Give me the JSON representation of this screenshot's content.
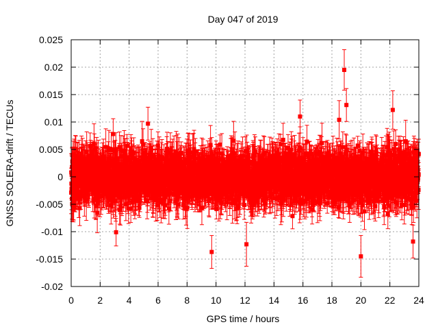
{
  "chart_data": {
    "type": "scatter",
    "title": "Day 047 of 2019",
    "xlabel": "GPS time / hours",
    "ylabel": "GNSS SOLERA-drift / TECUs",
    "xlim": [
      0,
      24
    ],
    "ylim": [
      -0.02,
      0.025
    ],
    "x_ticks": [
      0,
      2,
      4,
      6,
      8,
      10,
      12,
      14,
      16,
      18,
      20,
      22,
      24
    ],
    "x_tick_labels": [
      "0",
      "2",
      "4",
      "6",
      "8",
      "10",
      "12",
      "14",
      "16",
      "18",
      "20",
      "22",
      "24"
    ],
    "y_ticks": [
      -0.02,
      -0.015,
      -0.01,
      -0.005,
      0,
      0.005,
      0.01,
      0.015,
      0.02,
      0.025
    ],
    "y_tick_labels": [
      "-0.02",
      "-0.015",
      "-0.01",
      "-0.005",
      "0",
      "0.005",
      "0.01",
      "0.015",
      "0.02",
      "0.025"
    ],
    "grid": true,
    "series_color": "#ff0000",
    "noise": {
      "sample_interval_hours": 0.0083,
      "center": 0.0,
      "spread": 0.0032,
      "error_bar": 0.0028
    },
    "highlighted_points": [
      {
        "x": 18.85,
        "y": 0.0195,
        "err": 0.0037
      },
      {
        "x": 19.0,
        "y": 0.0131,
        "err": 0.003
      },
      {
        "x": 22.2,
        "y": 0.0122,
        "err": 0.0035
      },
      {
        "x": 9.7,
        "y": -0.0137,
        "err": 0.003
      },
      {
        "x": 20.0,
        "y": -0.0145,
        "err": 0.0038
      },
      {
        "x": 12.1,
        "y": -0.0123,
        "err": 0.004
      },
      {
        "x": 23.6,
        "y": -0.0118,
        "err": 0.003
      },
      {
        "x": 3.1,
        "y": -0.0101,
        "err": 0.0025
      },
      {
        "x": 2.9,
        "y": 0.0078,
        "err": 0.0028
      },
      {
        "x": 5.3,
        "y": 0.0097,
        "err": 0.003
      },
      {
        "x": 15.8,
        "y": 0.011,
        "err": 0.003
      },
      {
        "x": 18.5,
        "y": 0.0104,
        "err": 0.0035
      }
    ]
  }
}
